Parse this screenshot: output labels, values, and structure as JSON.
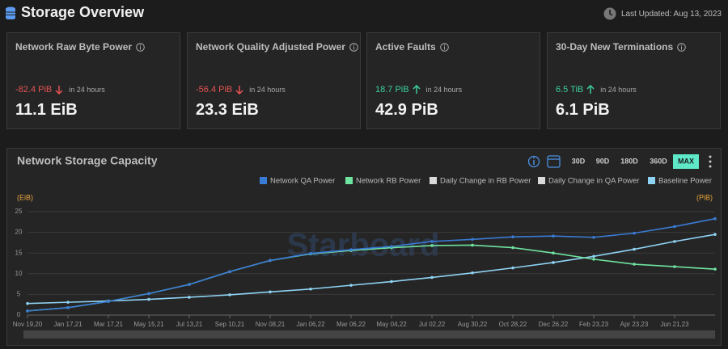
{
  "header": {
    "title": "Storage Overview",
    "updated": "Last Updated: Aug 13, 2023"
  },
  "cards": [
    {
      "title": "Network Raw Byte Power",
      "change": "-82.4 PiB",
      "note": "in 24 hours",
      "value": "11.1 EiB"
    },
    {
      "title": "Network Quality Adjusted Power",
      "change": "-56.4 PiB",
      "note": "in 24 hours",
      "value": "23.3 EiB"
    },
    {
      "title": "Active Faults",
      "change": "18.7 PiB",
      "note": "in 24 hours",
      "value": "42.9 PiB"
    },
    {
      "title": "30-Day New Terminations",
      "change": "6.5 TiB",
      "note": "in 24 hours",
      "value": "6.1 PiB"
    }
  ],
  "ranges": [
    "30D",
    "90D",
    "180D",
    "360D",
    "MAX"
  ],
  "active_range": "MAX",
  "watermark": "Starboard",
  "chart_data": {
    "type": "line",
    "title": "Network Storage Capacity",
    "y_label": "(EiB)",
    "y2_label": "(PiB)",
    "categories": [
      "Nov 19,20",
      "Jan 17,21",
      "Mar 17,21",
      "May 15,21",
      "Jul 13,21",
      "Sep 10,21",
      "Nov 08,21",
      "Jan 06,22",
      "Mar 06,22",
      "May 04,22",
      "Jul 02,22",
      "Aug 30,22",
      "Oct 28,22",
      "Dec 26,22",
      "Feb 23,23",
      "Apr 23,23",
      "Jun 21,23",
      null
    ],
    "series": [
      {
        "name": "Network QA Power",
        "color": "#3a7bd5",
        "values": [
          1.0,
          1.8,
          3.3,
          5.2,
          7.4,
          10.5,
          13.2,
          14.9,
          15.8,
          16.6,
          17.8,
          18.3,
          18.9,
          19.1,
          18.8,
          19.8,
          21.4,
          23.3
        ]
      },
      {
        "name": "Network RB Power",
        "color": "#6fe3a0",
        "values": [
          1.0,
          1.8,
          3.3,
          5.2,
          7.4,
          10.5,
          13.2,
          14.8,
          15.6,
          16.3,
          16.8,
          16.9,
          16.3,
          15.0,
          13.5,
          12.3,
          11.7,
          11.1
        ]
      },
      {
        "name": "Daily Change in RB Power",
        "color": "#d9d9d9",
        "values": [
          null,
          null,
          null,
          null,
          null,
          null,
          null,
          null,
          null,
          null,
          null,
          null,
          null,
          null,
          null,
          null,
          null,
          null
        ]
      },
      {
        "name": "Daily Change in QA Power",
        "color": "#d9d9d9",
        "values": [
          null,
          null,
          null,
          null,
          null,
          null,
          null,
          null,
          null,
          null,
          null,
          null,
          null,
          null,
          null,
          null,
          null,
          null
        ]
      },
      {
        "name": "Baseline Power",
        "color": "#8fd3f4",
        "values": [
          2.8,
          3.1,
          3.4,
          3.8,
          4.3,
          4.9,
          5.6,
          6.3,
          7.2,
          8.1,
          9.1,
          10.2,
          11.4,
          12.7,
          14.2,
          15.9,
          17.8,
          19.5
        ]
      }
    ],
    "ylim": [
      0,
      25
    ],
    "yticks": [
      0,
      5,
      10,
      15,
      20,
      25
    ],
    "grid": true
  }
}
